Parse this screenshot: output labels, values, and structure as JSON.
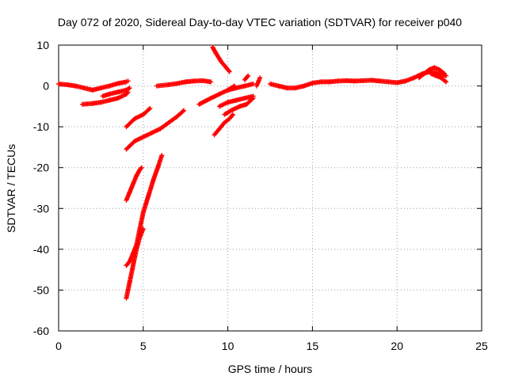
{
  "chart_data": {
    "type": "scatter",
    "title": "Day 072 of 2020, Sidereal Day-to-day VTEC variation (SDTVAR) for receiver p040",
    "xlabel": "GPS time / hours",
    "ylabel": "SDTVAR / TECUs",
    "xlim": [
      0,
      25
    ],
    "ylim": [
      -60,
      10
    ],
    "xticks": [
      0,
      5,
      10,
      15,
      20,
      25
    ],
    "yticks": [
      -60,
      -50,
      -40,
      -30,
      -20,
      -10,
      0,
      10
    ],
    "grid": true,
    "marker": "+",
    "color": "#ff0000",
    "tracks": [
      {
        "x": [
          0.0,
          0.5,
          1.0,
          1.5,
          2.0,
          2.5,
          3.0,
          3.5,
          4.0,
          4.1
        ],
        "y": [
          0.5,
          0.3,
          0.0,
          -0.5,
          -1.0,
          -0.5,
          0.0,
          0.6,
          1.0,
          1.2
        ]
      },
      {
        "x": [
          1.4,
          2.0,
          2.5,
          3.0,
          3.5,
          4.0,
          4.1
        ],
        "y": [
          -4.5,
          -4.3,
          -4.0,
          -3.5,
          -3.0,
          -2.0,
          -1.5
        ]
      },
      {
        "x": [
          2.6,
          3.0,
          3.5,
          4.0,
          4.2
        ],
        "y": [
          -2.5,
          -2.0,
          -1.5,
          -1.0,
          -0.5
        ]
      },
      {
        "x": [
          4.0,
          4.5,
          5.0,
          5.4
        ],
        "y": [
          -10.0,
          -8.0,
          -7.0,
          -5.5
        ]
      },
      {
        "x": [
          4.0,
          4.5,
          5.0,
          5.5,
          6.0,
          6.5,
          7.0,
          7.4
        ],
        "y": [
          -15.5,
          -13.5,
          -12.5,
          -11.5,
          -10.5,
          -9.0,
          -7.5,
          -6.0
        ]
      },
      {
        "x": [
          4.0,
          4.2,
          4.4,
          4.6,
          4.8,
          4.9
        ],
        "y": [
          -28.0,
          -26.0,
          -24.0,
          -22.0,
          -20.5,
          -20.0
        ]
      },
      {
        "x": [
          4.0,
          4.2,
          4.4,
          4.6,
          4.8,
          5.0
        ],
        "y": [
          -52.0,
          -48.0,
          -44.0,
          -40.0,
          -37.0,
          -35.0
        ]
      },
      {
        "x": [
          4.0,
          4.2,
          4.4,
          4.6,
          4.8,
          5.0,
          5.3,
          5.6,
          5.9,
          6.1
        ],
        "y": [
          -44.0,
          -43.0,
          -41.0,
          -39.0,
          -35.0,
          -31.0,
          -27.0,
          -23.0,
          -19.5,
          -17.0
        ]
      },
      {
        "x": [
          5.8,
          6.5,
          7.0,
          7.5,
          8.0,
          8.5,
          9.0
        ],
        "y": [
          0.0,
          0.3,
          0.6,
          1.0,
          1.2,
          1.3,
          1.0
        ]
      },
      {
        "x": [
          9.1,
          9.3,
          9.6,
          9.9,
          10.1
        ],
        "y": [
          9.5,
          8.0,
          6.0,
          4.5,
          3.5
        ]
      },
      {
        "x": [
          9.2,
          9.5,
          9.8,
          10.1,
          10.3
        ],
        "y": [
          -12.0,
          -10.5,
          -9.0,
          -8.0,
          -7.0
        ]
      },
      {
        "x": [
          9.5,
          10.0,
          10.5,
          11.0,
          11.5
        ],
        "y": [
          -5.0,
          -4.0,
          -3.5,
          -3.0,
          -2.5
        ]
      },
      {
        "x": [
          9.8,
          10.2,
          10.7,
          11.1,
          11.5
        ],
        "y": [
          -7.0,
          -6.0,
          -5.0,
          -4.5,
          -3.0
        ]
      },
      {
        "x": [
          10.0,
          10.5,
          11.0,
          11.5
        ],
        "y": [
          -1.0,
          -0.5,
          0.0,
          0.5
        ]
      },
      {
        "x": [
          8.3,
          9.0,
          9.5,
          10.0,
          10.4
        ],
        "y": [
          -4.5,
          -3.0,
          -2.0,
          -1.0,
          0.0
        ]
      },
      {
        "x": [
          11.0,
          11.1,
          11.2
        ],
        "y": [
          1.5,
          2.0,
          2.5
        ]
      },
      {
        "x": [
          11.7,
          11.8,
          11.9
        ],
        "y": [
          0.0,
          1.0,
          2.0
        ]
      },
      {
        "x": [
          12.5,
          13.0,
          13.5,
          14.0,
          14.5,
          15.0,
          15.5,
          16.0,
          16.5,
          17.0,
          17.5,
          18.0,
          18.5,
          19.0,
          19.5,
          20.0,
          20.5,
          21.0,
          21.5,
          22.0,
          22.5,
          22.9
        ],
        "y": [
          0.5,
          0.0,
          -0.5,
          -0.5,
          0.0,
          0.7,
          1.0,
          1.0,
          1.2,
          1.3,
          1.2,
          1.3,
          1.4,
          1.2,
          1.0,
          0.8,
          1.2,
          2.0,
          3.0,
          3.5,
          3.0,
          2.5
        ]
      },
      {
        "x": [
          21.3,
          21.6,
          21.9,
          22.2,
          22.5,
          22.8
        ],
        "y": [
          2.0,
          3.0,
          4.0,
          4.5,
          4.0,
          3.0
        ]
      },
      {
        "x": [
          22.0,
          22.3,
          22.6,
          22.9
        ],
        "y": [
          3.0,
          2.5,
          2.0,
          1.0
        ]
      }
    ]
  }
}
